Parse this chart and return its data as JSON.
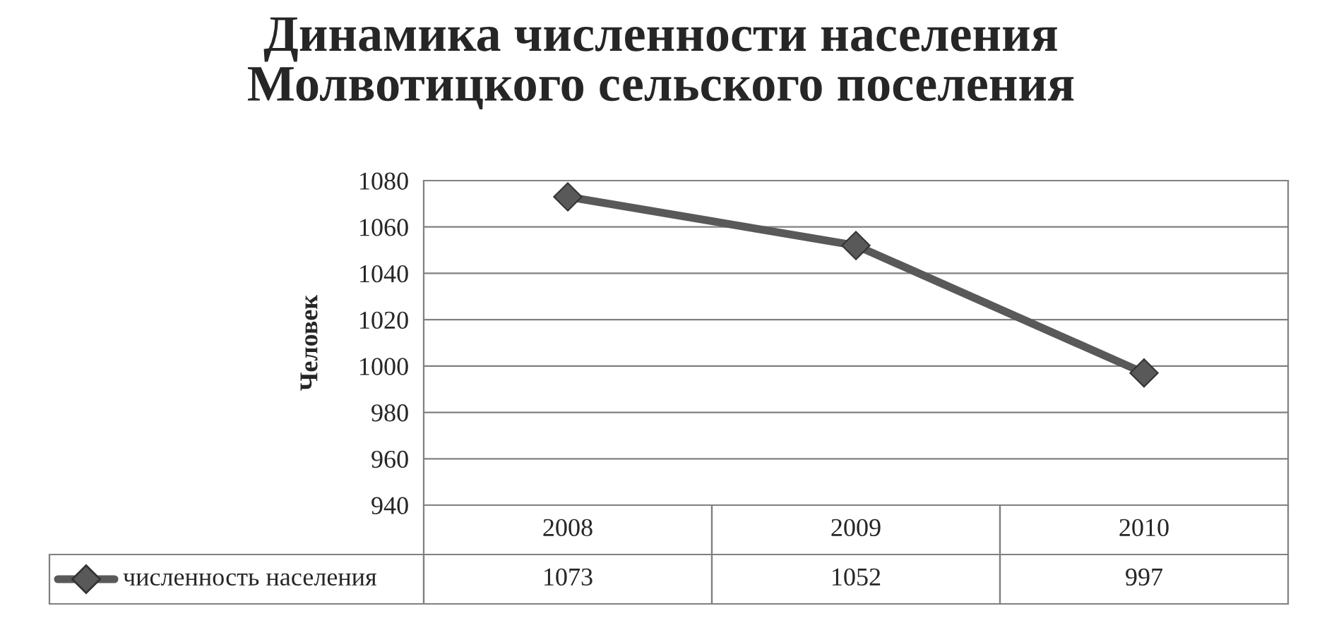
{
  "chart_data": {
    "type": "line",
    "title": "Динамика численности населения\nМолвотицкого сельского поселения",
    "ylabel": "Человек",
    "categories": [
      "2008",
      "2009",
      "2010"
    ],
    "series": [
      {
        "name": "численность населения",
        "color": "#595959",
        "values": [
          1073,
          1052,
          997
        ]
      }
    ],
    "ylim": [
      940,
      1080
    ],
    "yticks": [
      940,
      960,
      980,
      1000,
      1020,
      1040,
      1060,
      1080
    ],
    "grid": "y",
    "legend": "bottom",
    "marker": "diamond",
    "line_style": "solid",
    "data_labels": true
  }
}
